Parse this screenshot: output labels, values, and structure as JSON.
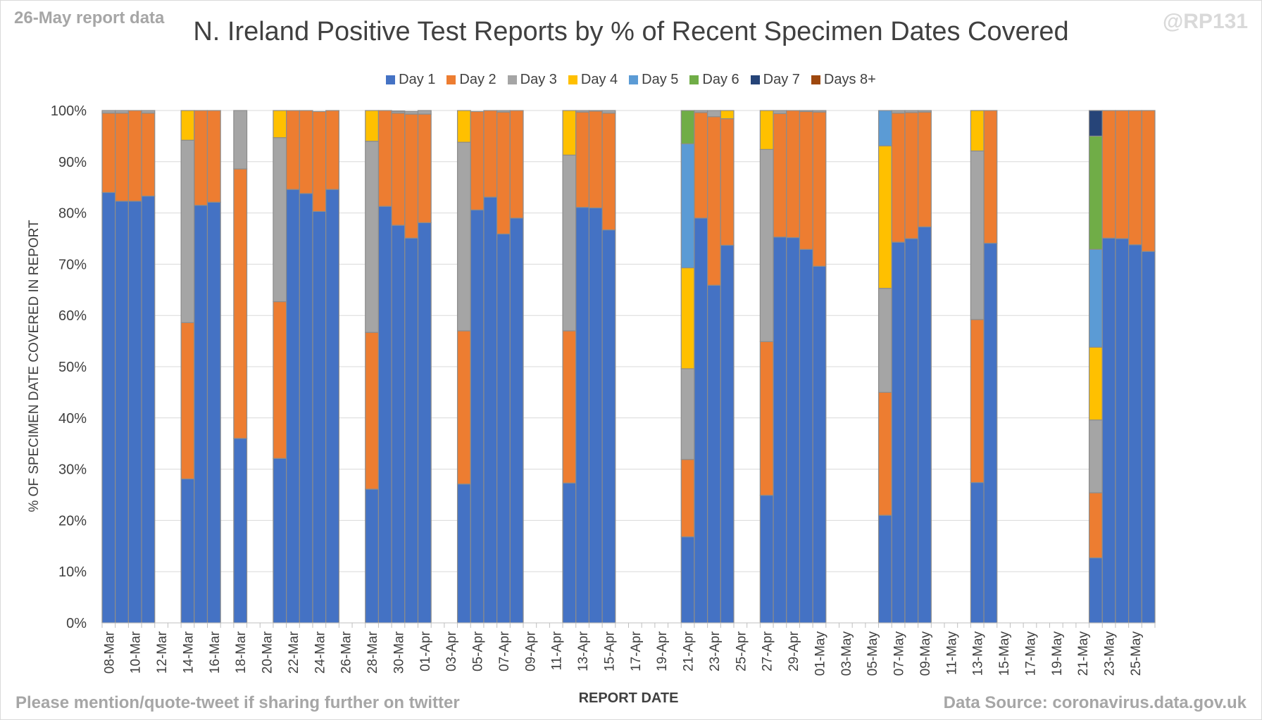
{
  "header": {
    "report_note": "26-May report data",
    "handle": "@RP131",
    "title": "N. Ireland Positive Test Reports by % of Recent Specimen Dates Covered"
  },
  "footer": {
    "left": "Please mention/quote-tweet if sharing further on twitter",
    "right": "Data Source: coronavirus.data.gov.uk"
  },
  "chart_data": {
    "type": "bar",
    "stacked": true,
    "title": "N. Ireland Positive Test Reports by % of Recent Specimen Dates Covered",
    "xlabel": "REPORT DATE",
    "ylabel": "% OF SPECIMEN DATE COVERED IN REPORT",
    "ylim": [
      0,
      100
    ],
    "y_ticks": [
      "0%",
      "10%",
      "20%",
      "30%",
      "40%",
      "50%",
      "60%",
      "70%",
      "80%",
      "90%",
      "100%"
    ],
    "grid": true,
    "legend_position": "top",
    "categories": [
      "08-Mar",
      "09-Mar",
      "10-Mar",
      "11-Mar",
      "12-Mar",
      "13-Mar",
      "14-Mar",
      "15-Mar",
      "16-Mar",
      "17-Mar",
      "18-Mar",
      "19-Mar",
      "20-Mar",
      "21-Mar",
      "22-Mar",
      "23-Mar",
      "24-Mar",
      "25-Mar",
      "26-Mar",
      "27-Mar",
      "28-Mar",
      "29-Mar",
      "30-Mar",
      "31-Mar",
      "01-Apr",
      "02-Apr",
      "03-Apr",
      "04-Apr",
      "05-Apr",
      "06-Apr",
      "07-Apr",
      "08-Apr",
      "09-Apr",
      "10-Apr",
      "11-Apr",
      "12-Apr",
      "13-Apr",
      "14-Apr",
      "15-Apr",
      "16-Apr",
      "17-Apr",
      "18-Apr",
      "19-Apr",
      "20-Apr",
      "21-Apr",
      "22-Apr",
      "23-Apr",
      "24-Apr",
      "25-Apr",
      "26-Apr",
      "27-Apr",
      "28-Apr",
      "29-Apr",
      "30-Apr",
      "01-May",
      "02-May",
      "03-May",
      "04-May",
      "05-May",
      "06-May",
      "07-May",
      "08-May",
      "09-May",
      "10-May",
      "11-May",
      "12-May",
      "13-May",
      "14-May",
      "15-May",
      "16-May",
      "17-May",
      "18-May",
      "19-May",
      "20-May",
      "21-May",
      "22-May",
      "23-May",
      "24-May",
      "25-May",
      "26-May"
    ],
    "tick_labels": [
      "08-Mar",
      "10-Mar",
      "12-Mar",
      "14-Mar",
      "16-Mar",
      "18-Mar",
      "20-Mar",
      "22-Mar",
      "24-Mar",
      "26-Mar",
      "28-Mar",
      "30-Mar",
      "01-Apr",
      "03-Apr",
      "05-Apr",
      "07-Apr",
      "09-Apr",
      "11-Apr",
      "13-Apr",
      "15-Apr",
      "17-Apr",
      "19-Apr",
      "21-Apr",
      "23-Apr",
      "25-Apr",
      "27-Apr",
      "29-Apr",
      "01-May",
      "03-May",
      "05-May",
      "07-May",
      "09-May",
      "11-May",
      "13-May",
      "15-May",
      "17-May",
      "19-May",
      "21-May",
      "23-May",
      "25-May"
    ],
    "series": [
      {
        "name": "Day 1",
        "color": "#4472c4",
        "values": [
          84,
          82.3,
          82.3,
          83.3,
          null,
          null,
          28.1,
          81.5,
          82.1,
          null,
          36,
          null,
          null,
          32.1,
          84.6,
          83.8,
          80.3,
          84.6,
          null,
          null,
          26.1,
          81.3,
          77.6,
          75.1,
          78.1,
          null,
          null,
          27.1,
          80.6,
          83.1,
          75.9,
          79,
          null,
          null,
          null,
          27.3,
          81.1,
          81,
          76.7,
          null,
          null,
          null,
          null,
          null,
          16.8,
          79,
          65.9,
          73.7,
          null,
          null,
          24.9,
          75.3,
          75.2,
          72.9,
          69.6,
          null,
          null,
          null,
          null,
          21,
          74.3,
          75,
          77.3,
          null,
          null,
          null,
          27.4,
          74.1,
          null,
          null,
          null,
          null,
          null,
          null,
          null,
          12.7,
          75.1,
          75,
          73.8,
          72.5
        ]
      },
      {
        "name": "Day 2",
        "color": "#ed7d31",
        "values": [
          15.5,
          17.2,
          17.7,
          16.2,
          null,
          null,
          30.5,
          18.5,
          17.9,
          null,
          52.6,
          null,
          null,
          30.6,
          15.4,
          16.2,
          19.5,
          15.4,
          null,
          null,
          30.6,
          18.7,
          21.9,
          24.2,
          21.2,
          null,
          null,
          29.9,
          19.2,
          16.9,
          23.8,
          21,
          null,
          null,
          null,
          29.7,
          18.6,
          18.9,
          22.8,
          null,
          null,
          null,
          null,
          null,
          15.1,
          20.6,
          32.9,
          24.7,
          null,
          null,
          30,
          24.1,
          24.8,
          26.9,
          30.1,
          null,
          null,
          null,
          null,
          24,
          25.2,
          24.6,
          22.4,
          null,
          null,
          null,
          31.8,
          25.9,
          null,
          null,
          null,
          null,
          null,
          null,
          null,
          12.7,
          24.9,
          25,
          26.2,
          27.5
        ]
      },
      {
        "name": "Day 3",
        "color": "#a5a5a5",
        "values": [
          0.5,
          0.5,
          0,
          0.5,
          null,
          null,
          35.6,
          0,
          0,
          null,
          11.4,
          null,
          null,
          32,
          0,
          0,
          0,
          0,
          null,
          null,
          37.3,
          0,
          0.3,
          0.5,
          0.7,
          null,
          null,
          36.8,
          0,
          0,
          0.3,
          0,
          null,
          null,
          null,
          34.3,
          0.3,
          0.1,
          0.5,
          null,
          null,
          null,
          null,
          null,
          17.7,
          0.4,
          1.2,
          0,
          null,
          null,
          37.5,
          0.6,
          0,
          0.2,
          0.3,
          null,
          null,
          null,
          null,
          20.3,
          0.5,
          0.4,
          0.3,
          null,
          null,
          null,
          32.9,
          0,
          null,
          null,
          null,
          null,
          null,
          null,
          null,
          14.2,
          0,
          0,
          0,
          0
        ]
      },
      {
        "name": "Day 4",
        "color": "#ffc000",
        "values": [
          0,
          0,
          0,
          0,
          null,
          null,
          5.8,
          0,
          0,
          null,
          0,
          null,
          null,
          5.3,
          0,
          0,
          0,
          0,
          null,
          null,
          6,
          0,
          0,
          0,
          0,
          null,
          null,
          6.2,
          0,
          0,
          0,
          0,
          null,
          null,
          null,
          8.7,
          0,
          0,
          0,
          null,
          null,
          null,
          null,
          null,
          19.7,
          0,
          0,
          1.6,
          null,
          null,
          7.6,
          0,
          0,
          0,
          0,
          null,
          null,
          null,
          null,
          27.8,
          0,
          0,
          0,
          null,
          null,
          null,
          7.9,
          0,
          null,
          null,
          null,
          null,
          null,
          null,
          null,
          14.2,
          0,
          0,
          0,
          0
        ]
      },
      {
        "name": "Day 5",
        "color": "#5b9bd5",
        "values": [
          0,
          0,
          0,
          0,
          null,
          null,
          0,
          0,
          0,
          null,
          0,
          null,
          null,
          0,
          0,
          0,
          0,
          0,
          null,
          null,
          0,
          0,
          0,
          0,
          0,
          null,
          null,
          0,
          0,
          0,
          0,
          0,
          null,
          null,
          null,
          0,
          0,
          0,
          0,
          null,
          null,
          null,
          null,
          null,
          24.2,
          0,
          0,
          0,
          null,
          null,
          0,
          0,
          0,
          0,
          0,
          null,
          null,
          null,
          null,
          6.9,
          0,
          0,
          0,
          null,
          null,
          null,
          0,
          0,
          null,
          null,
          null,
          null,
          null,
          null,
          null,
          19.1,
          0,
          0,
          0,
          0
        ]
      },
      {
        "name": "Day 6",
        "color": "#70ad47",
        "values": [
          0,
          0,
          0,
          0,
          null,
          null,
          0,
          0,
          0,
          null,
          0,
          null,
          null,
          0,
          0,
          0,
          0,
          0,
          null,
          null,
          0,
          0,
          0,
          0,
          0,
          null,
          null,
          0,
          0,
          0,
          0,
          0,
          null,
          null,
          null,
          0,
          0,
          0,
          0,
          null,
          null,
          null,
          null,
          null,
          6.5,
          0,
          0,
          0,
          null,
          null,
          0,
          0,
          0,
          0,
          0,
          null,
          null,
          null,
          null,
          0,
          0,
          0,
          0,
          null,
          null,
          null,
          0,
          0,
          null,
          null,
          null,
          null,
          null,
          null,
          null,
          22.1,
          0,
          0,
          0,
          0
        ]
      },
      {
        "name": "Day 7",
        "color": "#264478",
        "values": [
          0,
          0,
          0,
          0,
          null,
          null,
          0,
          0,
          0,
          null,
          0,
          null,
          null,
          0,
          0,
          0,
          0,
          0,
          null,
          null,
          0,
          0,
          0,
          0,
          0,
          null,
          null,
          0,
          0,
          0,
          0,
          0,
          null,
          null,
          null,
          0,
          0,
          0,
          0,
          null,
          null,
          null,
          null,
          null,
          0,
          0,
          0,
          0,
          null,
          null,
          0,
          0,
          0,
          0,
          0,
          null,
          null,
          null,
          null,
          0,
          0,
          0,
          0,
          null,
          null,
          null,
          0,
          0,
          null,
          null,
          null,
          null,
          null,
          null,
          null,
          5,
          0,
          0,
          0,
          0
        ]
      },
      {
        "name": "Days 8+",
        "color": "#9e480e",
        "values": [
          0,
          0,
          0,
          0,
          null,
          null,
          0,
          0,
          0,
          null,
          0,
          null,
          null,
          0,
          0,
          0,
          0,
          0,
          null,
          null,
          0,
          0,
          0.1,
          0,
          0,
          null,
          null,
          0,
          0,
          0,
          0,
          0,
          null,
          null,
          null,
          0,
          0,
          0,
          0,
          null,
          null,
          null,
          null,
          null,
          0,
          0,
          0,
          0,
          null,
          null,
          0,
          0,
          0,
          0,
          0,
          null,
          null,
          null,
          null,
          0,
          0,
          0,
          0,
          null,
          null,
          null,
          0,
          0,
          null,
          null,
          null,
          null,
          null,
          null,
          null,
          0,
          0,
          0,
          0,
          0
        ]
      }
    ]
  }
}
